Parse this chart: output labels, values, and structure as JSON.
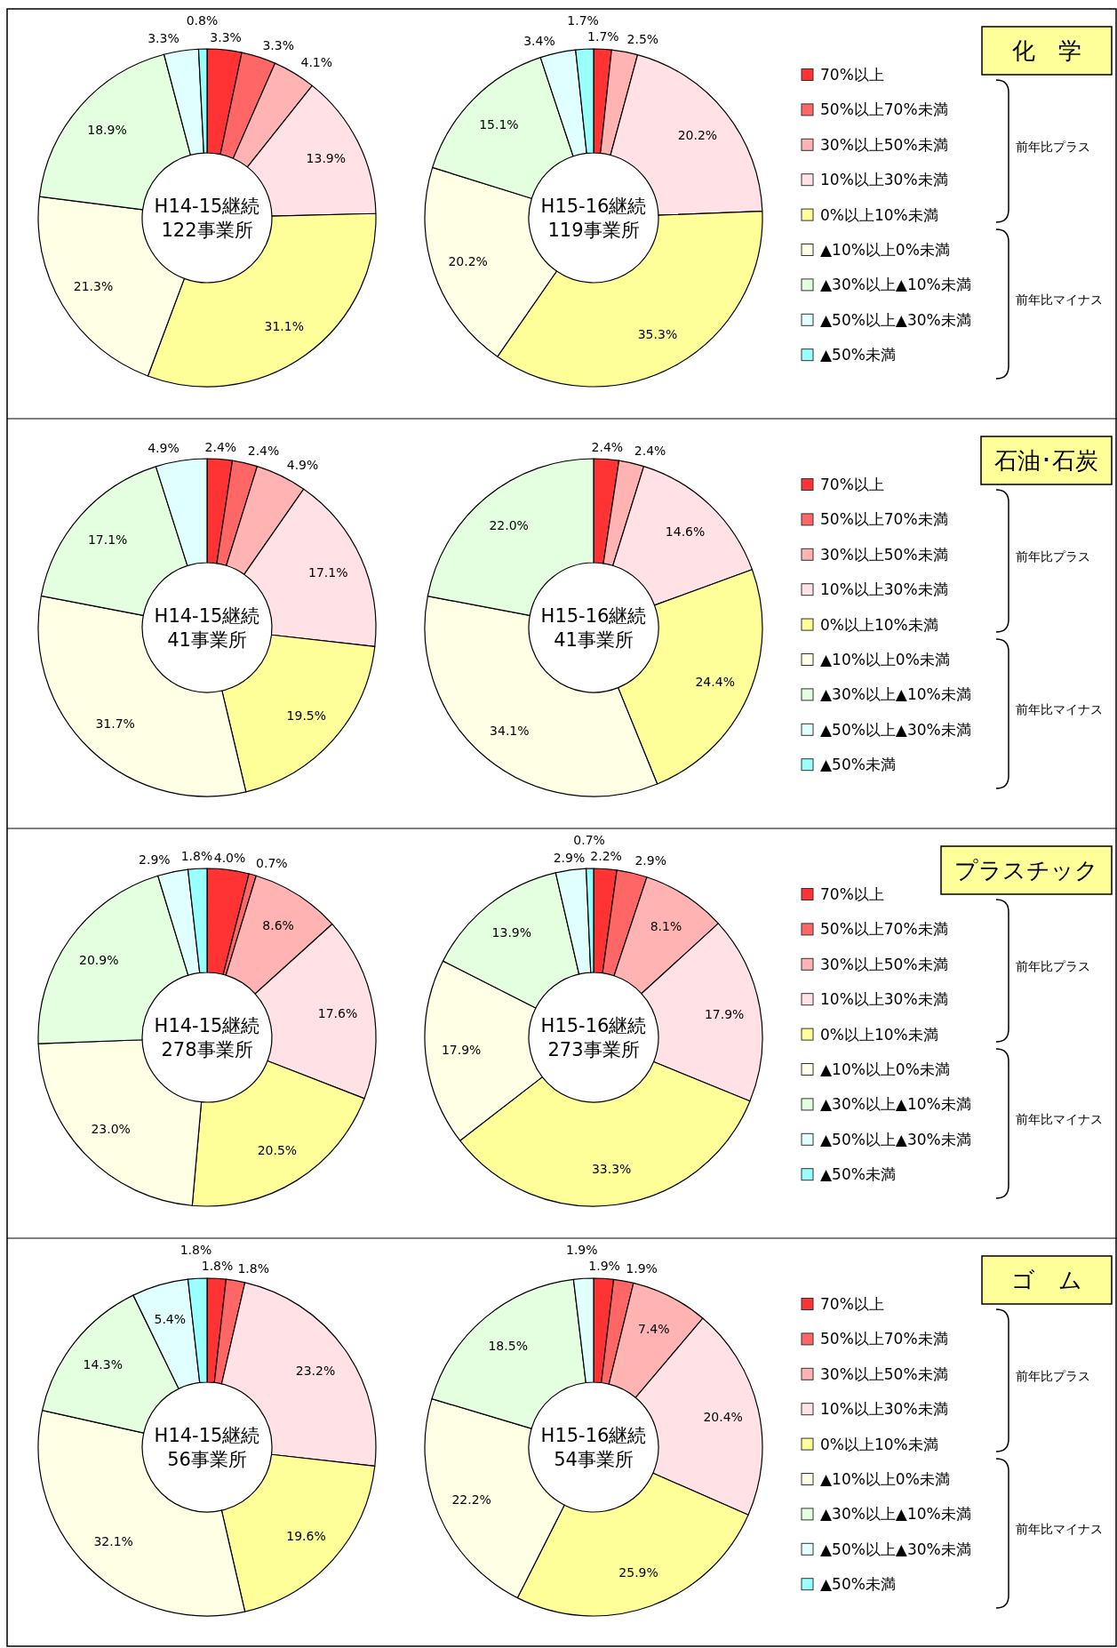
{
  "chart_data": [
    {
      "type": "donut",
      "title": "化　学",
      "categories": [
        "70%以上",
        "50%以上70%未満",
        "30%以上50%未満",
        "10%以上30%未満",
        "0%以上10%未満",
        "▲10%以上0%未満",
        "▲30%以上▲10%未満",
        "▲50%以上▲30%未満",
        "▲50%未満"
      ],
      "colors": [
        "#ff3333",
        "#ff6666",
        "#ffb3b3",
        "#ffe1e6",
        "#ffff99",
        "#ffffe6",
        "#e3ffe0",
        "#e0ffff",
        "#99ffff"
      ],
      "legend": "right",
      "annotations": [
        "前年比プラス",
        "前年比マイナス"
      ],
      "series": [
        {
          "name": "H14-15継続 122事業所",
          "values": [
            3.3,
            3.3,
            4.1,
            13.9,
            31.1,
            21.3,
            18.9,
            3.3,
            0.8
          ],
          "value_labels": [
            "3.3%",
            "3.3%",
            "4.1%",
            "13.9%",
            "31.1%",
            "21.3%",
            "18.9%",
            "3.3%",
            "0.8%"
          ]
        },
        {
          "name": "H15-16継続 119事業所",
          "values": [
            1.7,
            0,
            2.5,
            20.2,
            35.3,
            20.2,
            15.1,
            3.4,
            1.7
          ],
          "value_labels": [
            "1.7%",
            null,
            "2.5%",
            "20.2%",
            "35.3%",
            "20.2%",
            "15.1%",
            "3.4%",
            "1.7%"
          ]
        }
      ]
    },
    {
      "type": "donut",
      "title": "石油･石炭",
      "categories": [
        "70%以上",
        "50%以上70%未満",
        "30%以上50%未満",
        "10%以上30%未満",
        "0%以上10%未満",
        "▲10%以上0%未満",
        "▲30%以上▲10%未満",
        "▲50%以上▲30%未満",
        "▲50%未満"
      ],
      "colors": [
        "#ff3333",
        "#ff6666",
        "#ffb3b3",
        "#ffe1e6",
        "#ffff99",
        "#ffffe6",
        "#e3ffe0",
        "#e0ffff",
        "#99ffff"
      ],
      "legend": "right",
      "annotations": [
        "前年比プラス",
        "前年比マイナス"
      ],
      "series": [
        {
          "name": "H14-15継続 41事業所",
          "values": [
            2.4,
            2.4,
            4.9,
            17.1,
            19.5,
            31.7,
            17.1,
            4.9,
            0
          ],
          "value_labels": [
            "2.4%",
            "2.4%",
            "4.9%",
            "17.1%",
            "19.5%",
            "31.7%",
            "17.1%",
            "4.9%",
            null
          ]
        },
        {
          "name": "H15-16継続 41事業所",
          "values": [
            2.4,
            0,
            2.4,
            14.6,
            24.4,
            34.1,
            22.0,
            0,
            0
          ],
          "value_labels": [
            "2.4%",
            null,
            "2.4%",
            "14.6%",
            "24.4%",
            "34.1%",
            "22.0%",
            null,
            null
          ]
        }
      ]
    },
    {
      "type": "donut",
      "title": "プラスチック",
      "categories": [
        "70%以上",
        "50%以上70%未満",
        "30%以上50%未満",
        "10%以上30%未満",
        "0%以上10%未満",
        "▲10%以上0%未満",
        "▲30%以上▲10%未満",
        "▲50%以上▲30%未満",
        "▲50%未満"
      ],
      "colors": [
        "#ff3333",
        "#ff6666",
        "#ffb3b3",
        "#ffe1e6",
        "#ffff99",
        "#ffffe6",
        "#e3ffe0",
        "#e0ffff",
        "#99ffff"
      ],
      "legend": "right",
      "annotations": [
        "前年比プラス",
        "前年比マイナス"
      ],
      "series": [
        {
          "name": "H14-15継続 278事業所",
          "values": [
            4.0,
            0.7,
            8.6,
            17.6,
            20.5,
            23.0,
            20.9,
            2.9,
            1.8
          ],
          "value_labels": [
            "4.0%",
            "0.7%",
            "8.6%",
            "17.6%",
            "20.5%",
            "23.0%",
            "20.9%",
            "2.9%",
            "1.8%"
          ]
        },
        {
          "name": "H15-16継続 273事業所",
          "values": [
            2.2,
            2.9,
            8.1,
            17.9,
            33.3,
            17.9,
            13.9,
            2.9,
            0.7
          ],
          "value_labels": [
            "2.2%",
            "2.9%",
            "8.1%",
            "17.9%",
            "33.3%",
            "17.9%",
            "13.9%",
            "2.9%",
            "0.7%"
          ]
        }
      ]
    },
    {
      "type": "donut",
      "title": "ゴ　ム",
      "categories": [
        "70%以上",
        "50%以上70%未満",
        "30%以上50%未満",
        "10%以上30%未満",
        "0%以上10%未満",
        "▲10%以上0%未満",
        "▲30%以上▲10%未満",
        "▲50%以上▲30%未満",
        "▲50%未満"
      ],
      "colors": [
        "#ff3333",
        "#ff6666",
        "#ffb3b3",
        "#ffe1e6",
        "#ffff99",
        "#ffffe6",
        "#e3ffe0",
        "#e0ffff",
        "#99ffff"
      ],
      "legend": "right",
      "annotations": [
        "前年比プラス",
        "前年比マイナス"
      ],
      "series": [
        {
          "name": "H14-15継続 56事業所",
          "values": [
            1.8,
            1.8,
            0,
            23.2,
            19.6,
            32.1,
            14.3,
            5.4,
            1.8
          ],
          "value_labels": [
            "1.8%",
            "1.8%",
            null,
            "23.2%",
            "19.6%",
            "32.1%",
            "14.3%",
            "5.4%",
            "1.8%"
          ]
        },
        {
          "name": "H15-16継続 54事業所",
          "values": [
            1.9,
            1.9,
            7.4,
            20.4,
            25.9,
            22.2,
            18.5,
            1.9,
            0
          ],
          "value_labels": [
            "1.9%",
            "1.9%",
            "7.4%",
            "20.4%",
            "25.9%",
            "22.2%",
            "18.5%",
            "1.9%",
            null
          ]
        }
      ]
    }
  ]
}
